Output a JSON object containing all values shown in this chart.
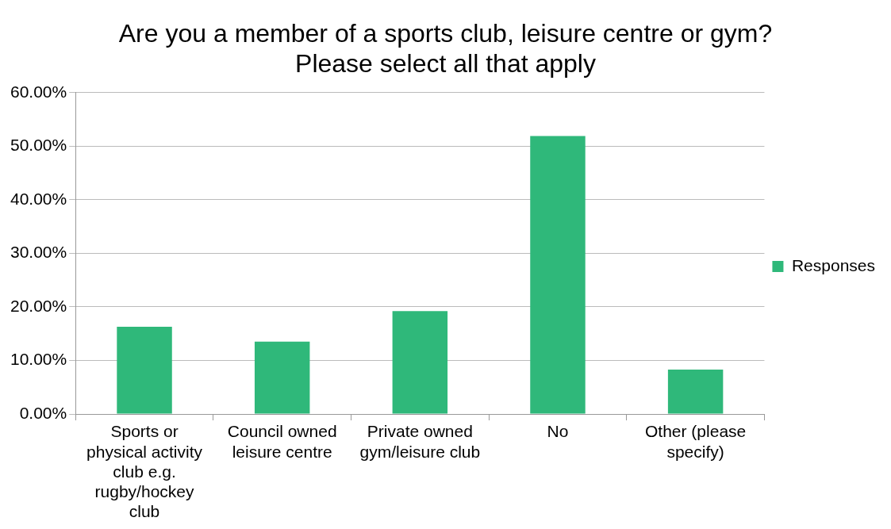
{
  "chart_data": {
    "type": "bar",
    "title": "Are you a member of a sports club, leisure centre or gym? Please select all that apply",
    "categories": [
      "Sports or physical activity club e.g. rugby/hockey club",
      "Council owned leisure centre",
      "Private owned gym/leisure club",
      "No",
      "Other (please specify)"
    ],
    "series": [
      {
        "name": "Responses",
        "color": "#2fb87a",
        "values": [
          16.3,
          13.5,
          19.2,
          51.9,
          8.3
        ]
      }
    ],
    "ylim": [
      0,
      60
    ],
    "yticks": [
      {
        "value": 0,
        "label": "0.00%"
      },
      {
        "value": 10,
        "label": "10.00%"
      },
      {
        "value": 20,
        "label": "20.00%"
      },
      {
        "value": 30,
        "label": "30.00%"
      },
      {
        "value": 40,
        "label": "40.00%"
      },
      {
        "value": 50,
        "label": "50.00%"
      },
      {
        "value": 60,
        "label": "60.00%"
      }
    ],
    "grid": "y",
    "legend": "right"
  }
}
